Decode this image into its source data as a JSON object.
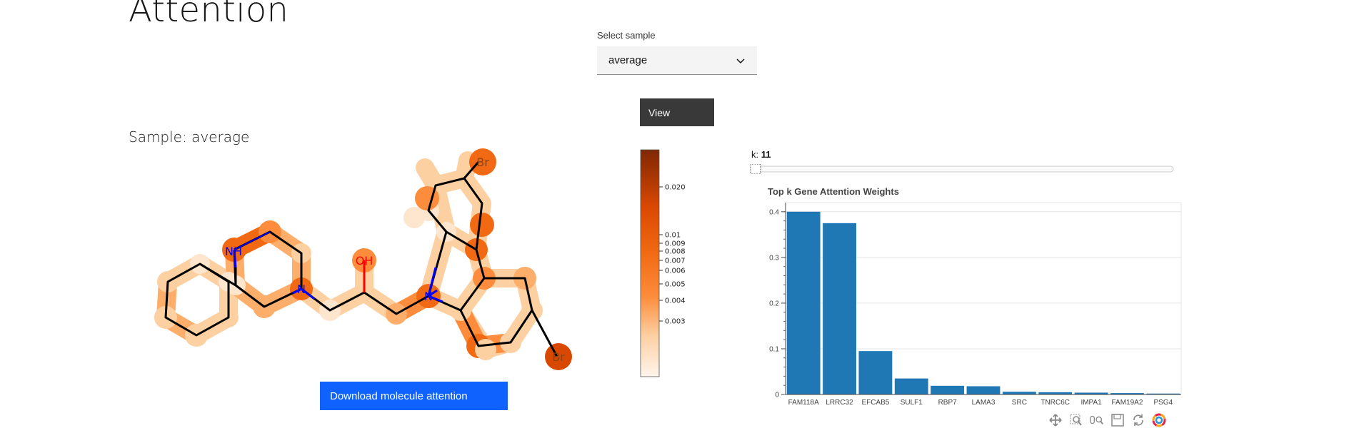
{
  "page": {
    "title": "Attention"
  },
  "select": {
    "label": "Select sample",
    "value": "average"
  },
  "view_button": {
    "label": "View"
  },
  "sample": {
    "heading": "Sample: average"
  },
  "molecule": {
    "labels": {
      "nh": "NH",
      "n1": "N",
      "oh": "OH",
      "n2": "N",
      "br1": "Br",
      "br2": "Br"
    },
    "colors": {
      "bond": "#000000",
      "nitrogen": "#0000ff",
      "oxygen": "#ff0000",
      "bromine": "#8b4513"
    }
  },
  "download_button": {
    "label": "Download molecule attention"
  },
  "colorbar": {
    "ticks": [
      "0.020",
      "0.01",
      "0.009",
      "0.008",
      "0.007",
      "0.006",
      "0.005",
      "0.004",
      "0.003"
    ],
    "colors": {
      "low": "#fff5eb",
      "mid": "#fd8d3c",
      "high": "#7f2704"
    }
  },
  "k_slider": {
    "label": "k:",
    "value": "11"
  },
  "chart_data": {
    "type": "bar",
    "title": "Top k Gene Attention Weights",
    "categories": [
      "FAM118A",
      "LRRC32",
      "EFCAB5",
      "SULF1",
      "RBP7",
      "LAMA3",
      "SRC",
      "TNRC6C",
      "IMPA1",
      "FAM19A2",
      "PSG4"
    ],
    "values": [
      0.4,
      0.375,
      0.095,
      0.035,
      0.019,
      0.018,
      0.006,
      0.005,
      0.004,
      0.003,
      0.002
    ],
    "ylim": [
      0,
      0.42
    ],
    "yticks": [
      0,
      0.1,
      0.2,
      0.3,
      0.4
    ],
    "ytick_labels": [
      "0",
      "0.1",
      "0.2",
      "0.3",
      "0.4"
    ],
    "grid": true,
    "color": "#1f77b4"
  },
  "toolbar": {
    "icons": [
      "pan-icon",
      "box-zoom-icon",
      "wheel-zoom-icon",
      "save-icon",
      "reset-icon",
      "bokeh-logo-icon"
    ]
  }
}
